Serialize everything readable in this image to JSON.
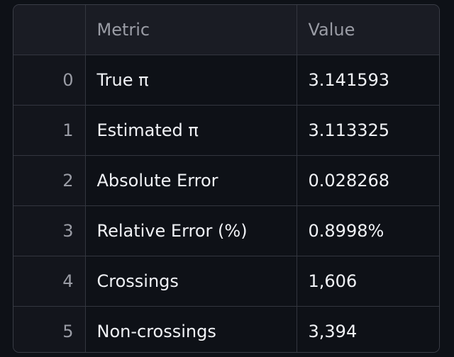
{
  "table": {
    "columns": [
      "",
      "Metric",
      "Value"
    ],
    "rows": [
      {
        "index": "0",
        "metric": "True π",
        "value": "3.141593"
      },
      {
        "index": "1",
        "metric": "Estimated π",
        "value": "3.113325"
      },
      {
        "index": "2",
        "metric": "Absolute Error",
        "value": "0.028268"
      },
      {
        "index": "3",
        "metric": "Relative Error (%)",
        "value": "0.8998%"
      },
      {
        "index": "4",
        "metric": "Crossings",
        "value": "1,606"
      },
      {
        "index": "5",
        "metric": "Non-crossings",
        "value": "3,394"
      }
    ]
  },
  "colors": {
    "background": "#0e1117",
    "header_background": "#1a1c24",
    "index_background": "#13151c",
    "border": "#3a3d46",
    "text": "#f0f2f6",
    "muted_text": "#9a9ca5"
  }
}
